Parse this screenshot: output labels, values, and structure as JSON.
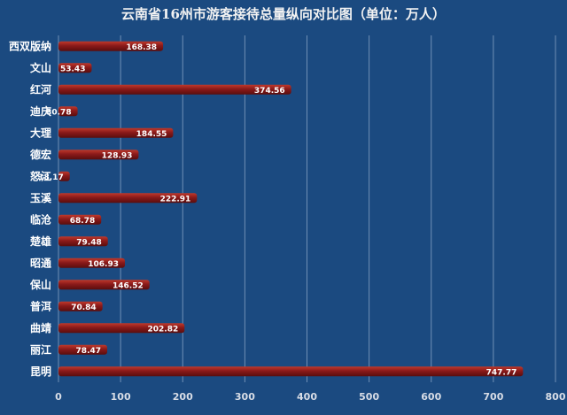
{
  "chart_data": {
    "type": "bar",
    "orientation": "horizontal",
    "title": "云南省16州市游客接待总量纵向对比图（单位：万人）",
    "categories": [
      "西双版纳",
      "文山",
      "红河",
      "迪庆",
      "大理",
      "德宏",
      "怒江",
      "玉溪",
      "临沧",
      "楚雄",
      "昭通",
      "保山",
      "普洱",
      "曲靖",
      "丽江",
      "昆明"
    ],
    "values": [
      168.38,
      53.43,
      374.56,
      30.78,
      184.55,
      128.93,
      18.17,
      222.91,
      68.78,
      79.48,
      106.93,
      146.52,
      70.84,
      202.82,
      78.47,
      747.77
    ],
    "data_labels": [
      "168.38",
      "53.43",
      "374.56",
      "30.78",
      "184.55",
      "128.93",
      "18.17",
      "222.91",
      "68.78",
      "79.48",
      "106.93",
      "146.52",
      "70.84",
      "202.82",
      "78.47",
      "747.77"
    ],
    "xlim": [
      0,
      800
    ],
    "xticks": [
      "0",
      "100",
      "200",
      "300",
      "400",
      "500",
      "600",
      "700",
      "800"
    ],
    "grid": true,
    "bar_color": "#8a1a1a",
    "bar_highlight": "#c0392b",
    "background": "#1b4a80"
  }
}
